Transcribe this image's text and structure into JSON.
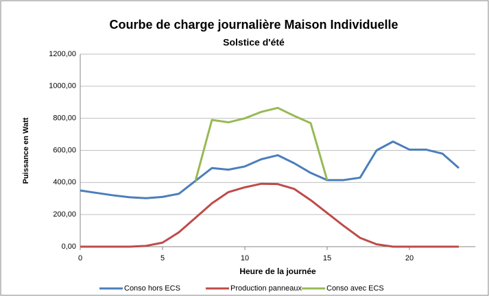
{
  "chart_data": {
    "type": "line",
    "title": "Courbe de charge journalière Maison Individuelle",
    "subtitle": "Solstice d'été",
    "x_label": "Heure de la journée",
    "y_label": "Puissance en Watt",
    "x": [
      0,
      1,
      2,
      3,
      4,
      5,
      6,
      7,
      8,
      9,
      10,
      11,
      12,
      13,
      14,
      15,
      16,
      17,
      18,
      19,
      20,
      21,
      22,
      23
    ],
    "series": [
      {
        "name": "Conso hors ECS",
        "color": "#4a7ebb",
        "values": [
          350,
          335,
          320,
          308,
          302,
          310,
          330,
          410,
          490,
          480,
          500,
          545,
          570,
          520,
          460,
          415,
          415,
          430,
          600,
          655,
          605,
          605,
          580,
          490
        ]
      },
      {
        "name": "Production panneaux",
        "color": "#be4b48",
        "values": [
          0,
          0,
          0,
          0,
          5,
          25,
          90,
          180,
          270,
          340,
          370,
          392,
          390,
          360,
          290,
          210,
          130,
          55,
          15,
          0,
          0,
          0,
          0,
          0
        ]
      },
      {
        "name": "Conso avec ECS",
        "color": "#98b954",
        "values": [
          null,
          null,
          null,
          null,
          null,
          null,
          null,
          410,
          790,
          775,
          800,
          840,
          865,
          815,
          770,
          415,
          null,
          null,
          null,
          null,
          null,
          null,
          null,
          null
        ]
      }
    ],
    "xlim": [
      0,
      24
    ],
    "xticks": [
      0,
      5,
      10,
      15,
      20
    ],
    "ylim": [
      0,
      1200
    ],
    "yticks": [
      {
        "value": 0,
        "label": "0,00"
      },
      {
        "value": 200,
        "label": "200,00"
      },
      {
        "value": 400,
        "label": "400,00"
      },
      {
        "value": 600,
        "label": "600,00"
      },
      {
        "value": 800,
        "label": "800,00"
      },
      {
        "value": 1000,
        "label": "1000,00"
      },
      {
        "value": 1200,
        "label": "1200,00"
      }
    ],
    "grid": true,
    "legend": "bottom"
  }
}
